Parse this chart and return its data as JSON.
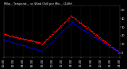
{
  "title_full": "Milw... Temperat... vs Wind Chill per Min... (24Hr)",
  "bg_color": "#000000",
  "text_color": "#ffffff",
  "grid_color": "#444444",
  "temp_color": "#ff0000",
  "chill_color": "#0000ff",
  "ylim": [
    -5,
    55
  ],
  "yticks": [
    0,
    10,
    20,
    30,
    40,
    50
  ],
  "figsize": [
    1.6,
    0.87
  ],
  "dpi": 100,
  "xlim": [
    0,
    1440
  ]
}
